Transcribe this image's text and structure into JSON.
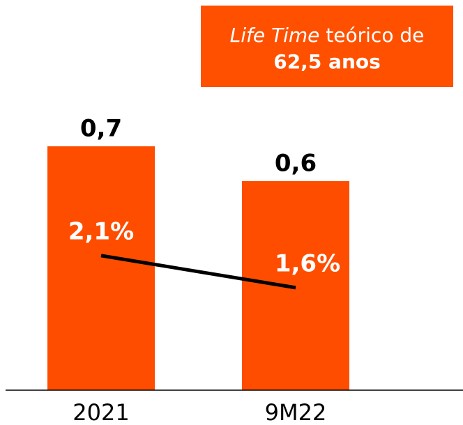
{
  "chart_data": {
    "type": "bar",
    "annotation": {
      "italic": "Life Time",
      "text": "teórico de",
      "bold": "62,5 anos"
    },
    "categories": [
      "2021",
      "9M22"
    ],
    "series": [
      {
        "type": "bar",
        "color": "#ff4d00",
        "values": [
          0.7,
          0.6
        ],
        "value_labels": [
          "0,7",
          "0,6"
        ]
      },
      {
        "type": "line",
        "axis": "y2",
        "color": "#000000",
        "values": [
          2.1,
          1.6
        ],
        "value_labels": [
          "2,1%",
          "1,6%"
        ]
      }
    ],
    "ylim": [
      0,
      0.8
    ],
    "y2lim": [
      0,
      4.35
    ]
  }
}
